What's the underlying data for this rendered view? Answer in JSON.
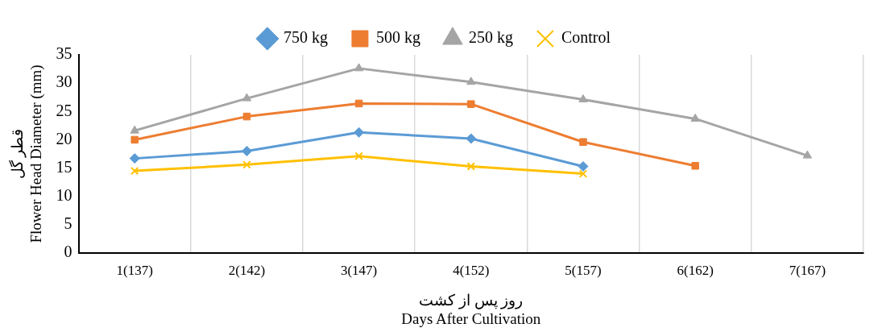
{
  "chart_data": {
    "type": "line",
    "categories": [
      "1(137)",
      "2(142)",
      "3(147)",
      "4(152)",
      "5(157)",
      "6(162)",
      "7(167)"
    ],
    "series": [
      {
        "name": "750 kg",
        "color": "#5b9bd5",
        "marker": "diamond",
        "values": [
          16.7,
          18.0,
          21.3,
          20.2,
          15.3,
          null,
          null
        ]
      },
      {
        "name": "500 kg",
        "color": "#ed7d31",
        "marker": "square",
        "values": [
          20.0,
          24.1,
          26.4,
          26.3,
          19.6,
          15.4,
          null
        ]
      },
      {
        "name": "250 kg",
        "color": "#a5a5a5",
        "marker": "triangle",
        "values": [
          21.6,
          27.3,
          32.6,
          30.2,
          27.1,
          23.7,
          17.2
        ]
      },
      {
        "name": "Control",
        "color": "#ffc000",
        "marker": "cross",
        "values": [
          14.5,
          15.6,
          17.1,
          15.3,
          14.0,
          null,
          null
        ]
      }
    ],
    "ylim": [
      0,
      35
    ],
    "yticks": [
      0,
      5,
      10,
      15,
      20,
      25,
      30,
      35
    ],
    "ylabel": "قطر گل\nFlower Head Diameter (mm)",
    "xlabel": "روز پس از کشت\nDays After Cultivation",
    "grid": "x",
    "legend": "top",
    "line_style": "solid"
  }
}
